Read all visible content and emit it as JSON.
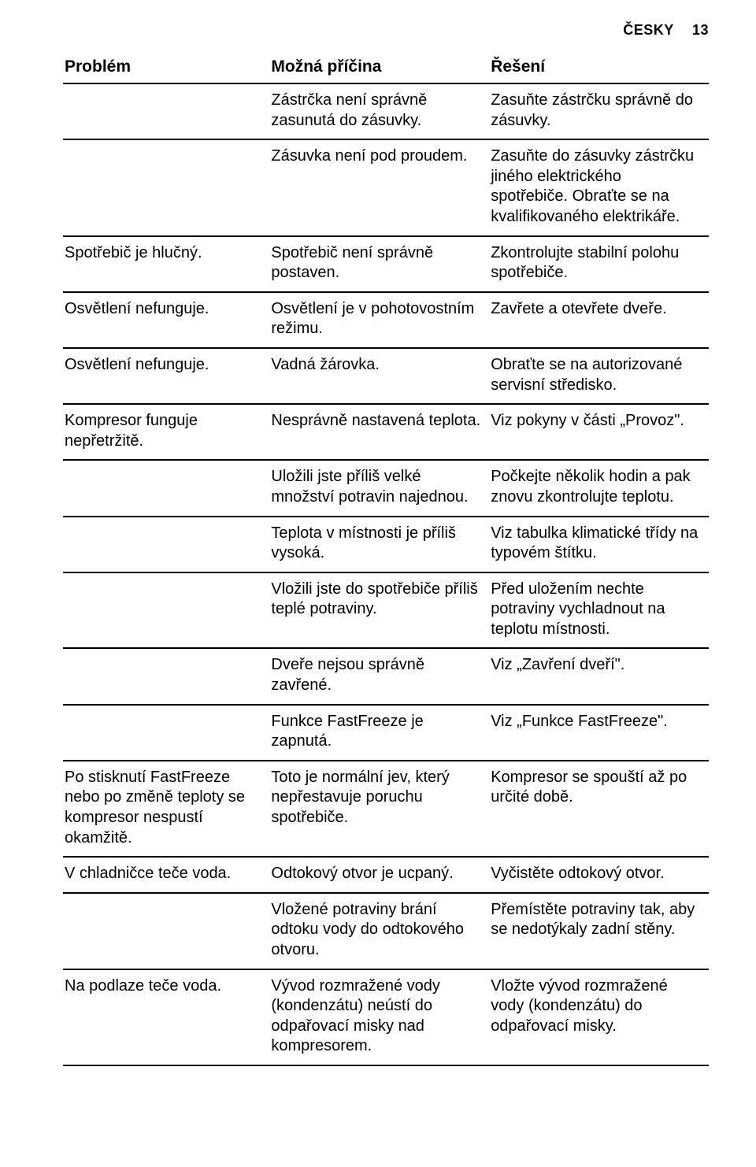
{
  "header": {
    "lang": "ČESKY",
    "page": "13"
  },
  "table": {
    "headers": [
      "Problém",
      "Možná příčina",
      "Řešení"
    ],
    "rows": [
      {
        "problem": "",
        "cause": "Zástrčka není správně zasunutá do zásuvky.",
        "solution": "Zasuňte zástrčku správně do zásuvky."
      },
      {
        "problem": "",
        "cause": "Zásuvka není pod proudem.",
        "solution": "Zasuňte do zásuvky zástrčku jiného elektrického spotřebiče. Obraťte se na kvalifikovaného elektrikáře."
      },
      {
        "problem": "Spotřebič je hlučný.",
        "cause": "Spotřebič není správně postaven.",
        "solution": "Zkontrolujte stabilní polohu spotřebiče."
      },
      {
        "problem": "Osvětlení nefunguje.",
        "cause": "Osvětlení je v pohotovostním režimu.",
        "solution": "Zavřete a otevřete dveře."
      },
      {
        "problem": "Osvětlení nefunguje.",
        "cause": "Vadná žárovka.",
        "solution": "Obraťte se na autorizované servisní středisko."
      },
      {
        "problem": "Kompresor funguje nepřetržitě.",
        "cause": "Nesprávně nastavená teplota.",
        "solution": "Viz pokyny v části „Provoz\"."
      },
      {
        "problem": "",
        "cause": "Uložili jste příliš velké množství potravin najednou.",
        "solution": "Počkejte několik hodin a pak znovu zkontrolujte teplotu."
      },
      {
        "problem": "",
        "cause": "Teplota v místnosti je příliš vysoká.",
        "solution": "Viz tabulka klimatické třídy na typovém štítku."
      },
      {
        "problem": "",
        "cause": "Vložili jste do spotřebiče příliš teplé potraviny.",
        "solution": "Před uložením nechte potraviny vychladnout na teplotu místnosti."
      },
      {
        "problem": "",
        "cause": "Dveře nejsou správně zavřené.",
        "solution": "Viz „Zavření dveří\"."
      },
      {
        "problem": "",
        "cause": "Funkce FastFreeze je zapnutá.",
        "solution": "Viz „Funkce FastFreeze\"."
      },
      {
        "problem": "Po stisknutí FastFreeze nebo po změně teploty se kompresor nespustí okamžitě.",
        "cause": "Toto je normální jev, který nepřestavuje poruchu spotřebiče.",
        "solution": "Kompresor se spouští až po určité době."
      },
      {
        "problem": "V chladničce teče voda.",
        "cause": "Odtokový otvor je ucpaný.",
        "solution": "Vyčistěte odtokový otvor."
      },
      {
        "problem": "",
        "cause": "Vložené potraviny brání odtoku vody do odtokového otvoru.",
        "solution": "Přemístěte potraviny tak, aby se nedotýkaly zadní stěny."
      },
      {
        "problem": "Na podlaze teče voda.",
        "cause": "Vývod rozmražené vody (kondenzátu) neústí do odpařovací misky nad kompresorem.",
        "solution": "Vložte vývod rozmražené vody (kondenzátu) do odpařovací misky."
      }
    ]
  }
}
